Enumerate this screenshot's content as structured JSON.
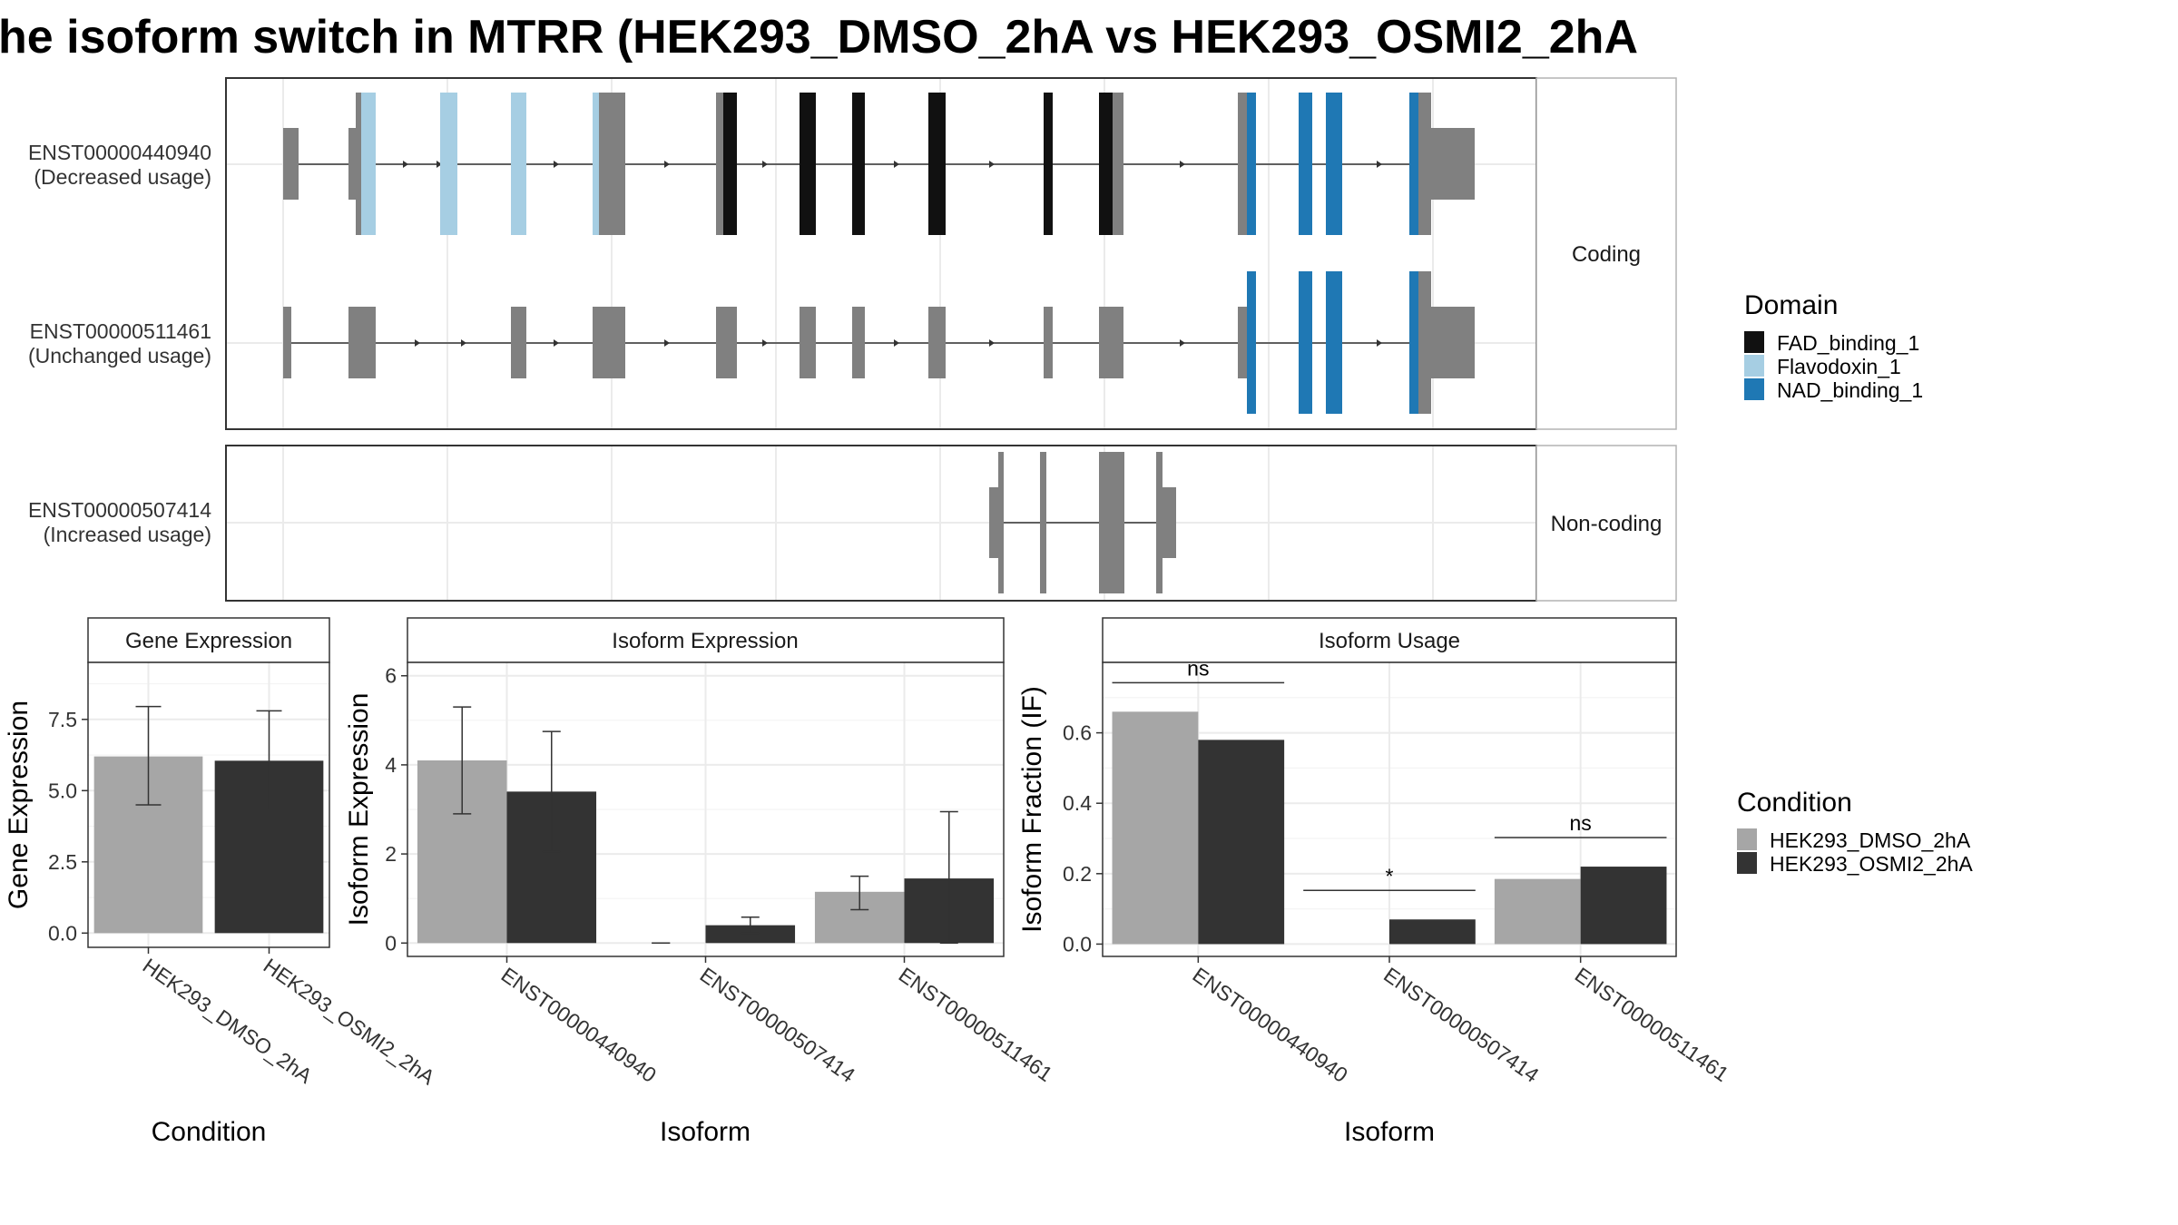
{
  "title": "he isoform switch in MTRR (HEK293_DMSO_2hA vs HEK293_OSMI2_2hA",
  "structure_panels": [
    {
      "facet": "Coding",
      "isoforms": [
        {
          "id": "ENST00000440940",
          "usage": "(Decreased usage)"
        },
        {
          "id": "ENST00000511461",
          "usage": "(Unchanged usage)"
        }
      ]
    },
    {
      "facet": "Non-coding",
      "isoforms": [
        {
          "id": "ENST00000507414",
          "usage": "(Increased usage)"
        }
      ]
    }
  ],
  "domain_legend": {
    "title": "Domain",
    "items": [
      {
        "label": "FAD_binding_1",
        "color": "#111111"
      },
      {
        "label": "Flavodoxin_1",
        "color": "#a6cee3"
      },
      {
        "label": "NAD_binding_1",
        "color": "#1f78b4"
      }
    ]
  },
  "condition_legend": {
    "title": "Condition",
    "items": [
      {
        "label": "HEK293_DMSO_2hA",
        "color": "#a6a6a6"
      },
      {
        "label": "HEK293_OSMI2_2hA",
        "color": "#333333"
      }
    ]
  },
  "chart_data": [
    {
      "type": "bar",
      "title": "Gene Expression",
      "xlabel": "Condition",
      "ylabel": "Gene Expression",
      "categories": [
        "HEK293_DMSO_2hA",
        "HEK293_OSMI2_2hA"
      ],
      "values": [
        6.2,
        6.05
      ],
      "error_low": [
        4.5,
        4.3
      ],
      "error_high": [
        7.95,
        7.8
      ],
      "colors": [
        "#a6a6a6",
        "#333333"
      ],
      "ylim": [
        -0.5,
        9.5
      ],
      "yticks": [
        0.0,
        2.5,
        5.0,
        7.5
      ],
      "ytick_labels": [
        "0.0",
        "2.5",
        "5.0",
        "7.5"
      ],
      "grid": true
    },
    {
      "type": "bar",
      "title": "Isoform Expression",
      "xlabel": "Isoform",
      "ylabel": "Isoform Expression",
      "categories": [
        "ENST00000440940",
        "ENST00000507414",
        "ENST00000511461"
      ],
      "series": [
        {
          "name": "HEK293_DMSO_2hA",
          "values": [
            4.1,
            0.0,
            1.15
          ],
          "error_low": [
            2.9,
            0.0,
            0.75
          ],
          "error_high": [
            5.3,
            0.0,
            1.5
          ]
        },
        {
          "name": "HEK293_OSMI2_2hA",
          "values": [
            3.4,
            0.4,
            1.45
          ],
          "error_low": [
            2.05,
            0.22,
            0.0
          ],
          "error_high": [
            4.75,
            0.58,
            2.95
          ]
        }
      ],
      "ylim": [
        -0.3,
        6.3
      ],
      "yticks": [
        0,
        2,
        4,
        6
      ],
      "ytick_labels": [
        "0",
        "2",
        "4",
        "6"
      ],
      "grid": true
    },
    {
      "type": "bar",
      "title": "Isoform Usage",
      "xlabel": "Isoform",
      "ylabel": "Isoform Fraction (IF)",
      "categories": [
        "ENST00000440940",
        "ENST00000507414",
        "ENST00000511461"
      ],
      "series": [
        {
          "name": "HEK293_DMSO_2hA",
          "values": [
            0.66,
            0.0,
            0.185
          ]
        },
        {
          "name": "HEK293_OSMI2_2hA",
          "values": [
            0.58,
            0.07,
            0.22
          ]
        }
      ],
      "annotations": [
        "ns",
        "*",
        "ns"
      ],
      "ylim": [
        -0.035,
        0.8
      ],
      "yticks": [
        0.0,
        0.2,
        0.4,
        0.6
      ],
      "ytick_labels": [
        "0.0",
        "0.2",
        "0.4",
        "0.6"
      ],
      "grid": true
    }
  ]
}
